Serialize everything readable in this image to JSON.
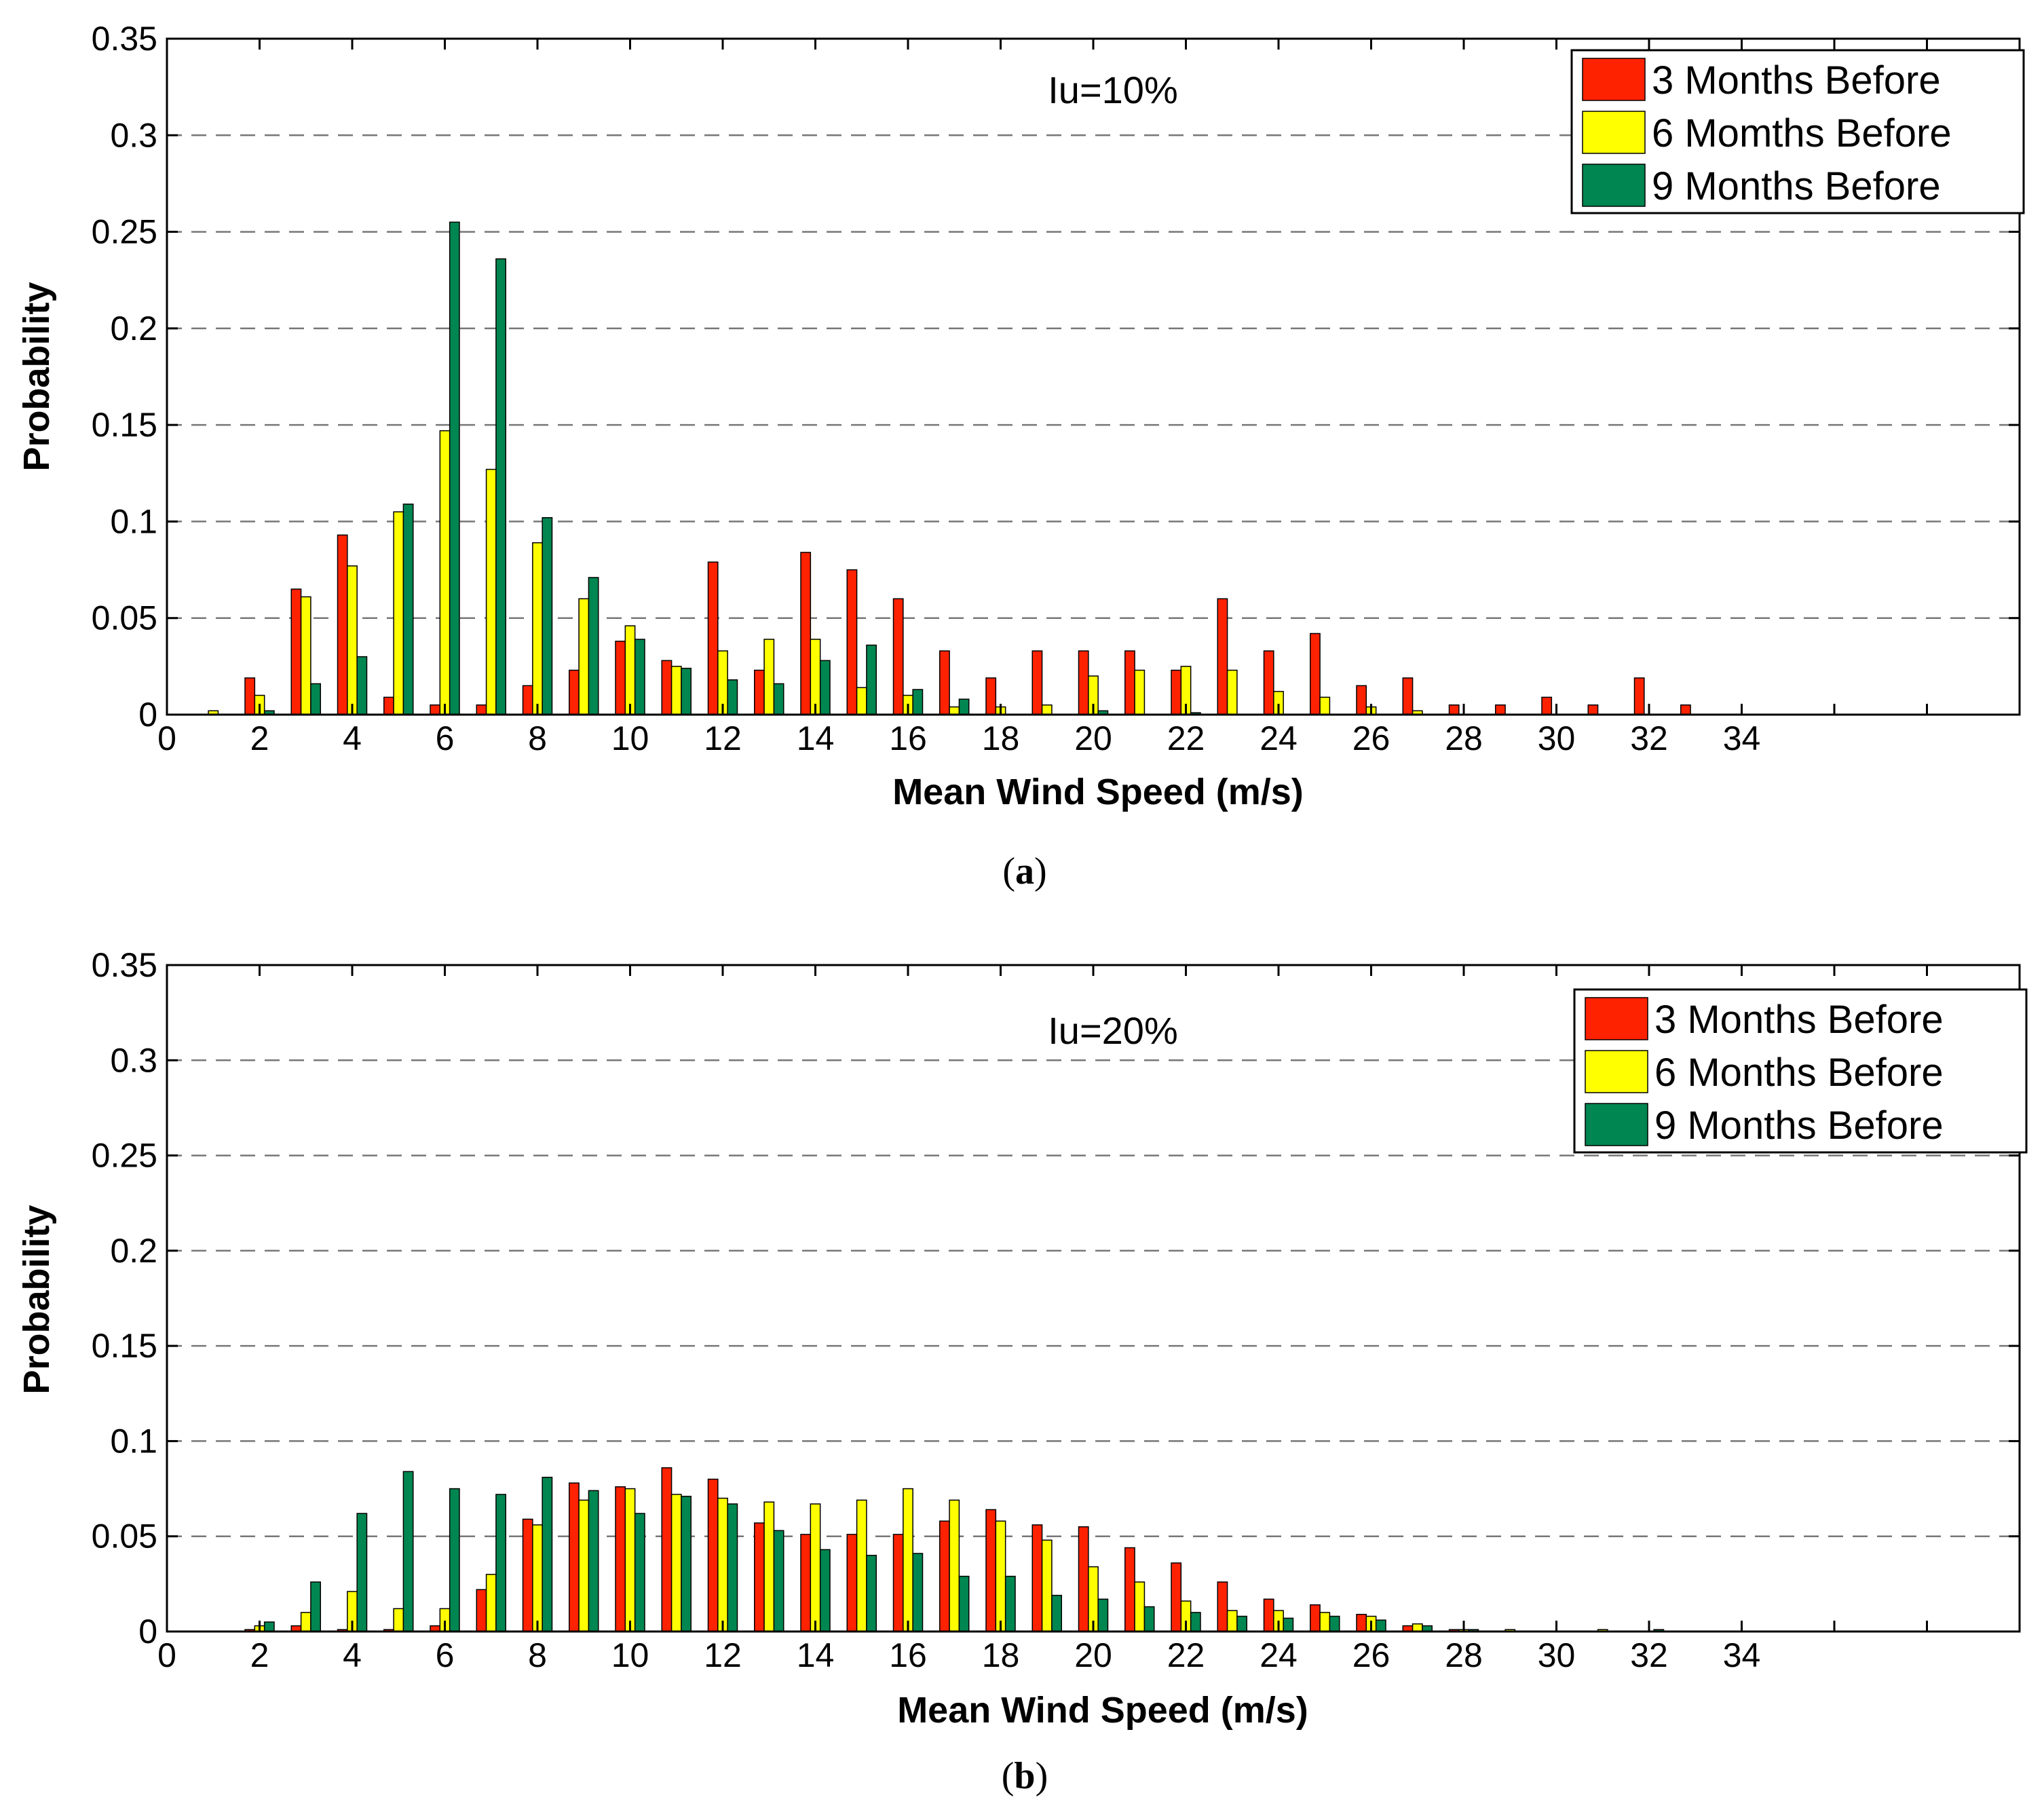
{
  "chart_data": [
    {
      "type": "bar",
      "panel": "(a)",
      "panel_open": "(",
      "panel_letter": "a",
      "panel_close": ")",
      "annotation": "Iu=10%",
      "xlabel": "Mean Wind Speed (m/s)",
      "ylabel": "Probability",
      "xlim": [
        0,
        40
      ],
      "ylim": [
        0,
        0.35
      ],
      "xticks": [
        0,
        2,
        4,
        6,
        8,
        10,
        12,
        14,
        16,
        18,
        20,
        22,
        24,
        26,
        28,
        30,
        32,
        34
      ],
      "yticks": [
        0,
        0.05,
        0.1,
        0.15,
        0.2,
        0.25,
        0.3,
        0.35
      ],
      "ytick_labels": [
        "0",
        "0.05",
        "0.1",
        "0.15",
        "0.2",
        "0.25",
        "0.3",
        "0.35"
      ],
      "grid": "horizontal dashed",
      "legend_position": "top-right",
      "x": [
        1,
        2,
        3,
        4,
        5,
        6,
        7,
        8,
        9,
        10,
        11,
        12,
        13,
        14,
        15,
        16,
        17,
        18,
        19,
        20,
        21,
        22,
        23,
        24,
        25,
        26,
        27,
        28,
        29,
        30,
        31,
        32,
        33
      ],
      "series": [
        {
          "name": "3 Months Before",
          "color": "#ff2200",
          "values": [
            0,
            0.019,
            0.065,
            0.093,
            0.009,
            0.005,
            0.005,
            0.015,
            0.023,
            0.038,
            0.028,
            0.079,
            0.023,
            0.084,
            0.075,
            0.06,
            0.033,
            0.019,
            0.033,
            0.033,
            0.033,
            0.023,
            0.06,
            0.033,
            0.042,
            0.015,
            0.019,
            0.005,
            0.005,
            0.009,
            0.005,
            0.019,
            0.005
          ]
        },
        {
          "name": "6 Momths Before",
          "color": "#ffff00",
          "values": [
            0.002,
            0.01,
            0.061,
            0.077,
            0.105,
            0.147,
            0.127,
            0.089,
            0.06,
            0.046,
            0.025,
            0.033,
            0.039,
            0.039,
            0.014,
            0.01,
            0.004,
            0.004,
            0.005,
            0.02,
            0.023,
            0.025,
            0.023,
            0.012,
            0.009,
            0.004,
            0.002,
            0,
            0,
            0,
            0,
            0,
            0
          ]
        },
        {
          "name": "9 Months Before",
          "color": "#008650",
          "values": [
            0,
            0.002,
            0.016,
            0.03,
            0.109,
            0.255,
            0.236,
            0.102,
            0.071,
            0.039,
            0.024,
            0.018,
            0.016,
            0.028,
            0.036,
            0.013,
            0.008,
            0,
            0,
            0.002,
            0,
            0.001,
            0,
            0,
            0,
            0,
            0,
            0,
            0,
            0,
            0,
            0,
            0
          ]
        }
      ]
    },
    {
      "type": "bar",
      "panel": "(b)",
      "panel_open": "(",
      "panel_letter": "b",
      "panel_close": ")",
      "annotation": "Iu=20%",
      "xlabel": "Mean Wind Speed (m/s)",
      "ylabel": "Probability",
      "xlim": [
        0,
        40
      ],
      "ylim": [
        0,
        0.35
      ],
      "xticks": [
        0,
        2,
        4,
        6,
        8,
        10,
        12,
        14,
        16,
        18,
        20,
        22,
        24,
        26,
        28,
        30,
        32,
        34
      ],
      "yticks": [
        0,
        0.05,
        0.1,
        0.15,
        0.2,
        0.25,
        0.3,
        0.35
      ],
      "ytick_labels": [
        "0",
        "0.05",
        "0.1",
        "0.15",
        "0.2",
        "0.25",
        "0.3",
        "0.35"
      ],
      "grid": "horizontal dashed",
      "legend_position": "top-right",
      "x": [
        1,
        2,
        3,
        4,
        5,
        6,
        7,
        8,
        9,
        10,
        11,
        12,
        13,
        14,
        15,
        16,
        17,
        18,
        19,
        20,
        21,
        22,
        23,
        24,
        25,
        26,
        27,
        28,
        29,
        30,
        31,
        32,
        33
      ],
      "series": [
        {
          "name": "3 Months Before",
          "color": "#ff2200",
          "values": [
            0,
            0.001,
            0.003,
            0.001,
            0.001,
            0.003,
            0.022,
            0.059,
            0.078,
            0.076,
            0.086,
            0.08,
            0.057,
            0.051,
            0.051,
            0.051,
            0.058,
            0.064,
            0.056,
            0.055,
            0.044,
            0.036,
            0.026,
            0.017,
            0.014,
            0.009,
            0.003,
            0.001,
            0,
            0,
            0,
            0,
            0
          ]
        },
        {
          "name": "6 Months Before",
          "color": "#ffff00",
          "values": [
            0,
            0.003,
            0.01,
            0.021,
            0.012,
            0.012,
            0.03,
            0.056,
            0.069,
            0.075,
            0.072,
            0.07,
            0.068,
            0.067,
            0.069,
            0.075,
            0.069,
            0.058,
            0.048,
            0.034,
            0.026,
            0.016,
            0.011,
            0.011,
            0.01,
            0.008,
            0.004,
            0.001,
            0.001,
            0,
            0.001,
            0,
            0
          ]
        },
        {
          "name": "9 Months Before",
          "color": "#008650",
          "values": [
            0,
            0.005,
            0.026,
            0.062,
            0.084,
            0.075,
            0.072,
            0.081,
            0.074,
            0.062,
            0.071,
            0.067,
            0.053,
            0.043,
            0.04,
            0.041,
            0.029,
            0.029,
            0.019,
            0.017,
            0.013,
            0.01,
            0.008,
            0.007,
            0.008,
            0.006,
            0.003,
            0.001,
            0,
            0,
            0,
            0.001,
            0
          ]
        }
      ]
    }
  ]
}
